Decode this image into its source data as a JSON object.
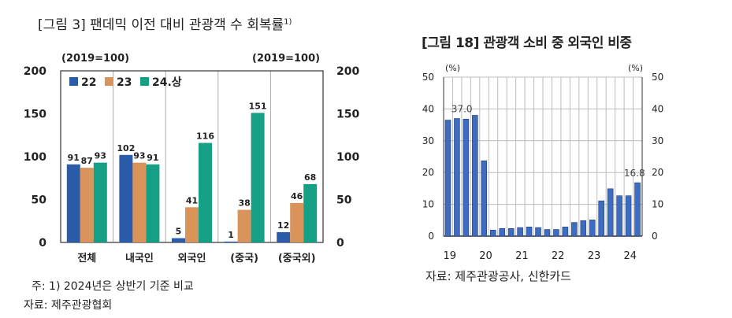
{
  "chart_data": [
    {
      "type": "bar",
      "title": "[그림 3] 팬데믹 이전 대비 관광객 수 회복률",
      "title_sup": "1)",
      "unit_left": "(2019=100)",
      "unit_right": "(2019=100)",
      "categories": [
        "전체",
        "내국인",
        "외국인",
        "(중국)",
        "(중국외)"
      ],
      "series": [
        {
          "name": "22",
          "color": "#2a5caa",
          "values": [
            91,
            102,
            5,
            1,
            12
          ]
        },
        {
          "name": "23",
          "color": "#d8945a",
          "values": [
            87,
            93,
            41,
            38,
            46
          ]
        },
        {
          "name": "24.상",
          "color": "#15a085",
          "values": [
            93,
            91,
            116,
            151,
            68
          ]
        }
      ],
      "ylim": [
        0,
        200
      ],
      "yticks": [
        0,
        50,
        100,
        150,
        200
      ],
      "legend": "top-left",
      "grid": "vertical",
      "note": "주: 1) 2024년은 상반기 기준 비교",
      "source": "자료: 제주관광협회"
    },
    {
      "type": "bar",
      "title": "[그림 18] 관광객 소비 중 외국인 비중",
      "unit_left": "(%)",
      "unit_right": "(%)",
      "x": [
        "19Q1",
        "19Q2",
        "19Q3",
        "19Q4",
        "20Q1",
        "20Q2",
        "20Q3",
        "20Q4",
        "21Q1",
        "21Q2",
        "21Q3",
        "21Q4",
        "22Q1",
        "22Q2",
        "22Q3",
        "22Q4",
        "23Q1",
        "23Q2",
        "23Q3",
        "23Q4",
        "24Q1",
        "24Q2"
      ],
      "values": [
        36.5,
        37.0,
        36.8,
        38.0,
        23.7,
        1.9,
        2.4,
        2.4,
        2.7,
        2.9,
        2.7,
        2.1,
        2.1,
        2.9,
        4.3,
        4.9,
        5.1,
        11.1,
        14.9,
        12.7,
        12.7,
        16.8
      ],
      "xtick_labels": [
        "19",
        "20",
        "21",
        "22",
        "23",
        "24"
      ],
      "annotations": [
        {
          "x": "19Q2",
          "text": "37.0"
        },
        {
          "x": "24Q2",
          "text": "16.8"
        }
      ],
      "ylim": [
        0,
        50
      ],
      "yticks": [
        0,
        10,
        20,
        30,
        40,
        50
      ],
      "color": "#3d6cc0",
      "grid": "both",
      "source": "자료: 제주관광공사, 신한카드"
    }
  ]
}
